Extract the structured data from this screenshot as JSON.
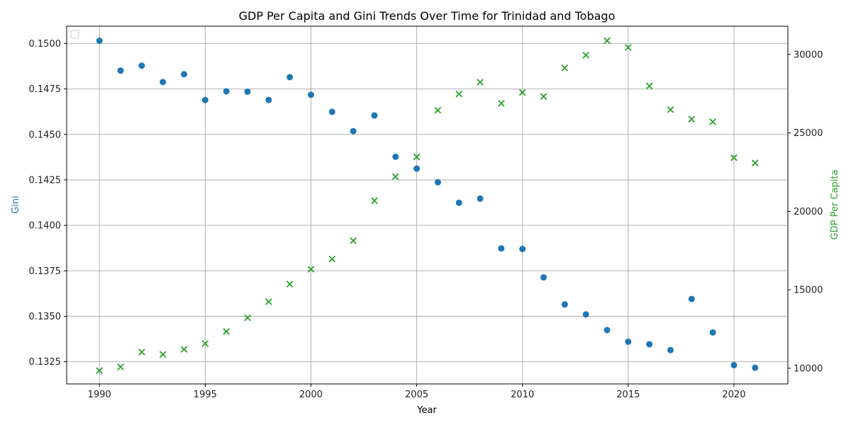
{
  "chart_data": {
    "type": "scatter",
    "title": "GDP Per Capita and Gini Trends Over Time for Trinidad and Tobago",
    "xlabel": "Year",
    "ylabel_left": "Gini",
    "ylabel_right": "GDP Per Capita",
    "xlim": [
      1988.45,
      2022.55
    ],
    "ylim_left": [
      0.13128,
      0.15095
    ],
    "ylim_right": [
      9000,
      31800
    ],
    "x_ticks": [
      "1990",
      "1995",
      "2000",
      "2005",
      "2010",
      "2015",
      "2020"
    ],
    "y_left_ticks": [
      "0.1325",
      "0.1350",
      "0.1375",
      "0.1400",
      "0.1425",
      "0.1450",
      "0.1475",
      "0.1500"
    ],
    "y_right_ticks": [
      "10000",
      "15000",
      "20000",
      "25000",
      "30000"
    ],
    "grid": true,
    "legend": "top-left (empty)",
    "colors": {
      "gini": "#1f77b4",
      "gdp": "#2ca02c",
      "grid": "#b0b0b0"
    },
    "x": [
      1990,
      1991,
      1992,
      1993,
      1994,
      1995,
      1996,
      1997,
      1998,
      1999,
      2000,
      2001,
      2002,
      2003,
      2004,
      2005,
      2006,
      2007,
      2008,
      2009,
      2010,
      2011,
      2012,
      2013,
      2014,
      2015,
      2016,
      2017,
      2018,
      2019,
      2020,
      2021
    ],
    "series": [
      {
        "axis": "left",
        "marker": "circle",
        "values": [
          0.15015,
          0.14851,
          0.14878,
          0.14788,
          0.14831,
          0.14689,
          0.14737,
          0.14735,
          0.14689,
          0.14815,
          0.14718,
          0.14624,
          0.14518,
          0.14604,
          0.14377,
          0.14312,
          0.14237,
          0.14124,
          0.14147,
          0.13873,
          0.1387,
          0.13714,
          0.13565,
          0.1351,
          0.13424,
          0.1336,
          0.13346,
          0.13314,
          0.13595,
          0.13411,
          0.13231,
          0.13217
        ]
      },
      {
        "axis": "right",
        "marker": "x",
        "values": [
          9850,
          10080,
          11030,
          10880,
          11210,
          11570,
          12340,
          13220,
          14240,
          15360,
          16310,
          16960,
          18130,
          20680,
          22210,
          23470,
          26440,
          27480,
          28230,
          26880,
          27580,
          27320,
          29150,
          29950,
          30880,
          30450,
          27990,
          26480,
          25870,
          25700,
          23420,
          23080
        ]
      }
    ]
  }
}
